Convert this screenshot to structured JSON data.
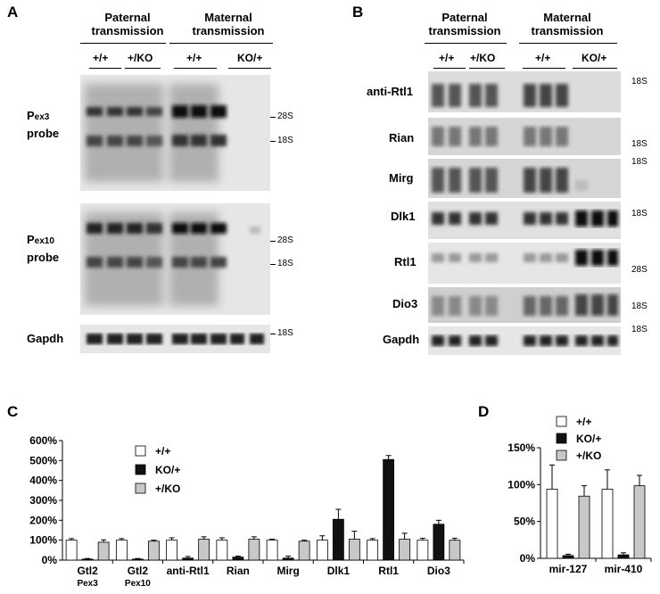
{
  "panels": {
    "A": {
      "label": "A",
      "header_left": "Paternal transmission",
      "header_right": "Maternal transmission",
      "genotypes": [
        "+/+",
        "+/KO",
        "+/+",
        "KO/+"
      ],
      "probes": [
        {
          "name": "Pex3",
          "prefix": "P",
          "sub": "ex3",
          "suffix": "probe",
          "markers": [
            "28S",
            "18S"
          ]
        },
        {
          "name": "Pex10",
          "prefix": "P",
          "sub": "ex10",
          "suffix": "probe",
          "markers": [
            "28S",
            "18S"
          ]
        },
        {
          "name": "Gapdh",
          "markers": [
            "18S"
          ]
        }
      ]
    },
    "B": {
      "label": "B",
      "header_left": "Paternal transmission",
      "header_right": "Maternal transmission",
      "genotypes": [
        "+/+",
        "+/KO",
        "+/+",
        "KO/+"
      ],
      "rows": [
        {
          "name": "anti-Rtl1",
          "marker": "18S"
        },
        {
          "name": "Rian",
          "marker": "18S"
        },
        {
          "name": "Mirg",
          "marker": "18S"
        },
        {
          "name": "Dlk1",
          "marker": "18S"
        },
        {
          "name": "Rtl1",
          "marker": "28S"
        },
        {
          "name": "Dio3",
          "marker": "18S"
        },
        {
          "name": "Gapdh",
          "marker": "18S"
        }
      ]
    },
    "C": {
      "label": "C"
    },
    "D": {
      "label": "D"
    }
  },
  "chart_data": [
    {
      "type": "bar",
      "categories": [
        [
          "Gtl2",
          "Pex3"
        ],
        [
          "Gtl2",
          "Pex10"
        ],
        [
          "anti-Rtl1"
        ],
        [
          "Rian"
        ],
        [
          "Mirg"
        ],
        [
          "Dlk1"
        ],
        [
          "Rtl1"
        ],
        [
          "Dio3"
        ]
      ],
      "series": [
        {
          "name": "+/+",
          "color": "#ffffff",
          "values": [
            100,
            100,
            100,
            100,
            100,
            100,
            100,
            100
          ],
          "errors": [
            8,
            8,
            12,
            12,
            5,
            22,
            8,
            10
          ]
        },
        {
          "name": "KO/+",
          "color": "#111111",
          "values": [
            5,
            5,
            10,
            15,
            10,
            205,
            505,
            180
          ],
          "errors": [
            3,
            3,
            8,
            5,
            10,
            50,
            20,
            20
          ]
        },
        {
          "name": "+/KO",
          "color": "#c8c8c8",
          "values": [
            90,
            95,
            105,
            105,
            95,
            105,
            105,
            100
          ],
          "errors": [
            12,
            5,
            12,
            12,
            5,
            40,
            30,
            10
          ]
        }
      ],
      "yticks": [
        "0%",
        "100%",
        "200%",
        "300%",
        "400%",
        "500%",
        "600%"
      ],
      "ylim": [
        0,
        600
      ]
    },
    {
      "type": "bar",
      "categories": [
        [
          "mir-127"
        ],
        [
          "mir-410"
        ]
      ],
      "series": [
        {
          "name": "+/+",
          "color": "#ffffff",
          "values": [
            100,
            100
          ],
          "errors": [
            35,
            28
          ]
        },
        {
          "name": "KO/+",
          "color": "#111111",
          "values": [
            4,
            5
          ],
          "errors": [
            2,
            3
          ]
        },
        {
          "name": "+/KO",
          "color": "#c8c8c8",
          "values": [
            90,
            105
          ],
          "errors": [
            15,
            15
          ]
        }
      ],
      "yticks": [
        "0%",
        "50%",
        "100%",
        "150%"
      ],
      "ylim": [
        0,
        160
      ]
    }
  ]
}
